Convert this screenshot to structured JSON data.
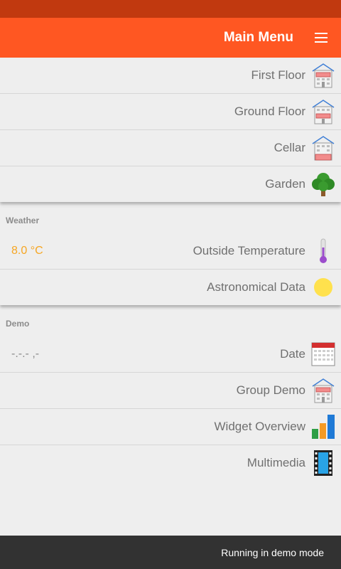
{
  "header": {
    "title": "Main Menu",
    "menu_icon": "hamburger-icon"
  },
  "floors": [
    {
      "label": "First Floor",
      "icon": "house-first-floor-icon"
    },
    {
      "label": "Ground Floor",
      "icon": "house-ground-floor-icon"
    },
    {
      "label": "Cellar",
      "icon": "house-cellar-icon"
    },
    {
      "label": "Garden",
      "icon": "tree-icon"
    }
  ],
  "weather": {
    "header": "Weather",
    "items": [
      {
        "label": "Outside Temperature",
        "value": "8.0 °C",
        "icon": "thermometer-icon"
      },
      {
        "label": "Astronomical Data",
        "icon": "sun-icon"
      }
    ]
  },
  "demo": {
    "header": "Demo",
    "items": [
      {
        "label": "Date",
        "value": "-.-.- ,-",
        "icon": "calendar-icon"
      },
      {
        "label": "Group Demo",
        "icon": "house-icon"
      },
      {
        "label": "Widget Overview",
        "icon": "bar-chart-icon"
      },
      {
        "label": "Multimedia",
        "icon": "film-icon"
      }
    ]
  },
  "snackbar": {
    "message": "Running in demo mode"
  },
  "colors": {
    "appbar": "#ff5722",
    "statusbar": "#c1390f",
    "value_accent": "#f6a623"
  }
}
